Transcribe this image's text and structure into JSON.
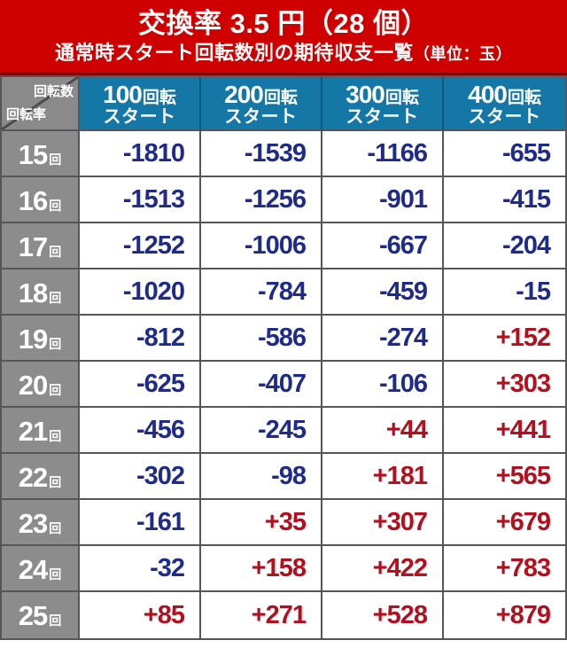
{
  "banner": {
    "title": "交換率 3.5 円（28 個）",
    "subtitle": "通常時スタート回転数別の期待収支一覧",
    "subtitle_unit": "（単位：玉）"
  },
  "table": {
    "corner_top_right": "回転数",
    "corner_bottom_left": "回転率",
    "row_unit": "回",
    "columns": [
      {
        "num": "100",
        "rot": "回転",
        "start": "スタート"
      },
      {
        "num": "200",
        "rot": "回転",
        "start": "スタート"
      },
      {
        "num": "300",
        "rot": "回転",
        "start": "スタート"
      },
      {
        "num": "400",
        "rot": "回転",
        "start": "スタート"
      }
    ],
    "rows": [
      {
        "label": "15",
        "values": [
          "-1810",
          "-1539",
          "-1166",
          "-655"
        ]
      },
      {
        "label": "16",
        "values": [
          "-1513",
          "-1256",
          "-901",
          "-415"
        ]
      },
      {
        "label": "17",
        "values": [
          "-1252",
          "-1006",
          "-667",
          "-204"
        ]
      },
      {
        "label": "18",
        "values": [
          "-1020",
          "-784",
          "-459",
          "-15"
        ]
      },
      {
        "label": "19",
        "values": [
          "-812",
          "-586",
          "-274",
          "+152"
        ]
      },
      {
        "label": "20",
        "values": [
          "-625",
          "-407",
          "-106",
          "+303"
        ]
      },
      {
        "label": "21",
        "values": [
          "-456",
          "-245",
          "+44",
          "+441"
        ]
      },
      {
        "label": "22",
        "values": [
          "-302",
          "-98",
          "+181",
          "+565"
        ]
      },
      {
        "label": "23",
        "values": [
          "-161",
          "+35",
          "+307",
          "+679"
        ]
      },
      {
        "label": "24",
        "values": [
          "-32",
          "+158",
          "+422",
          "+783"
        ]
      },
      {
        "label": "25",
        "values": [
          "+85",
          "+271",
          "+528",
          "+879"
        ]
      }
    ]
  },
  "colors": {
    "banner_red": "#cf0000",
    "banner_border_dark_red": "#7e0000",
    "header_teal": "#1577a6",
    "row_label_gray": "#8c8c8c",
    "border_gray": "#565656",
    "negative_value_navy": "#1e2b8a",
    "positive_value_red": "#b40f1e",
    "text_white": "#ffffff"
  },
  "chart_data": {
    "type": "table",
    "title": "交換率 3.5 円（28 個）",
    "subtitle": "通常時スタート回転数別の期待収支一覧（単位：玉）",
    "col_axis_label": "回転数",
    "row_axis_label": "回転率",
    "columns": [
      "100回転スタート",
      "200回転スタート",
      "300回転スタート",
      "400回転スタート"
    ],
    "rows": [
      "15回",
      "16回",
      "17回",
      "18回",
      "19回",
      "20回",
      "21回",
      "22回",
      "23回",
      "24回",
      "25回"
    ],
    "values": [
      [
        -1810,
        -1539,
        -1166,
        -655
      ],
      [
        -1513,
        -1256,
        -901,
        -415
      ],
      [
        -1252,
        -1006,
        -667,
        -204
      ],
      [
        -1020,
        -784,
        -459,
        -15
      ],
      [
        -812,
        -586,
        -274,
        152
      ],
      [
        -625,
        -407,
        -106,
        303
      ],
      [
        -456,
        -245,
        44,
        441
      ],
      [
        -302,
        -98,
        181,
        565
      ],
      [
        -161,
        35,
        307,
        679
      ],
      [
        -32,
        158,
        422,
        783
      ],
      [
        85,
        271,
        528,
        879
      ]
    ]
  }
}
